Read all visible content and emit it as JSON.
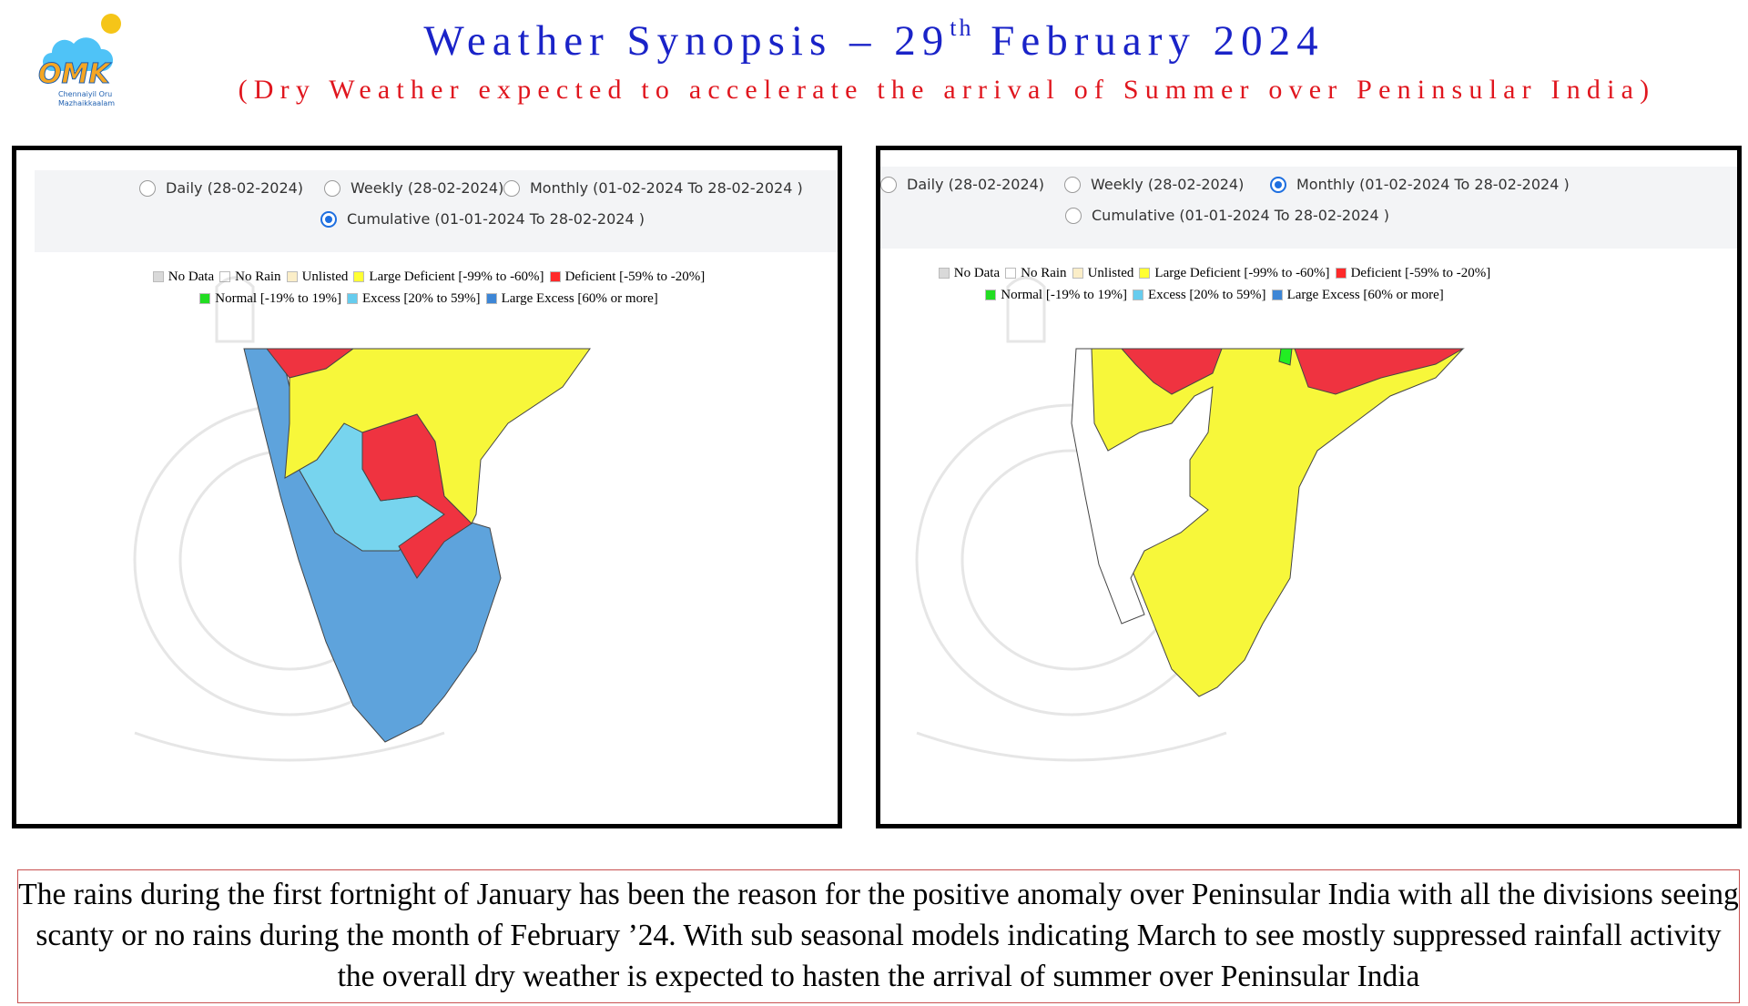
{
  "header": {
    "title_prefix": "Weather Synopsis – 29",
    "title_sup": "th",
    "title_suffix": " February 2024",
    "subtitle": "(Dry Weather expected to accelerate the arrival of Summer over Peninsular India)"
  },
  "logo": {
    "text_main": "OMK",
    "text_line1": "Chennaiyil Oru",
    "text_line2": "Mazhaikkaalam",
    "colors": {
      "moon": "#1e88d8",
      "cloud": "#4fc3f7",
      "sun": "#f5c518",
      "text": "#f5a623"
    }
  },
  "panels": [
    {
      "id": "cumulative",
      "options": [
        {
          "label": "Daily (28-02-2024)",
          "selected": false
        },
        {
          "label": "Weekly (28-02-2024)",
          "selected": false
        },
        {
          "label": "Monthly (01-02-2024 To 28-02-2024 )",
          "selected": false
        },
        {
          "label": "Cumulative (01-01-2024 To 28-02-2024 )",
          "selected": true
        }
      ]
    },
    {
      "id": "monthly",
      "options": [
        {
          "label": "Daily (28-02-2024)",
          "selected": false
        },
        {
          "label": "Weekly (28-02-2024)",
          "selected": false
        },
        {
          "label": "Monthly (01-02-2024 To 28-02-2024 )",
          "selected": true
        },
        {
          "label": "Cumulative (01-01-2024 To 28-02-2024 )",
          "selected": false
        }
      ]
    }
  ],
  "legend": [
    {
      "label": "No Data",
      "color": "#d9d9d9"
    },
    {
      "label": "No Rain",
      "color": "#ffffff"
    },
    {
      "label": "Unlisted",
      "color": "#fbeec8"
    },
    {
      "label": "Large Deficient [-99% to -60%]",
      "color": "#ffff33"
    },
    {
      "label": "Deficient [-59% to -20%]",
      "color": "#ff2a2a"
    },
    {
      "label": "Normal [-19% to 19%]",
      "color": "#22dd22"
    },
    {
      "label": "Excess [20% to 59%]",
      "color": "#66ccee"
    },
    {
      "label": "Large Excess [60% or more]",
      "color": "#3d86d6"
    }
  ],
  "footer": {
    "text": "The rains during the first fortnight of January has been the reason for the positive anomaly over Peninsular India with all the divisions seeing scanty or no rains during the month of February ’24. With sub seasonal models indicating March to see mostly suppressed rainfall activity the overall dry weather is expected to hasten the arrival of summer over Peninsular India"
  }
}
